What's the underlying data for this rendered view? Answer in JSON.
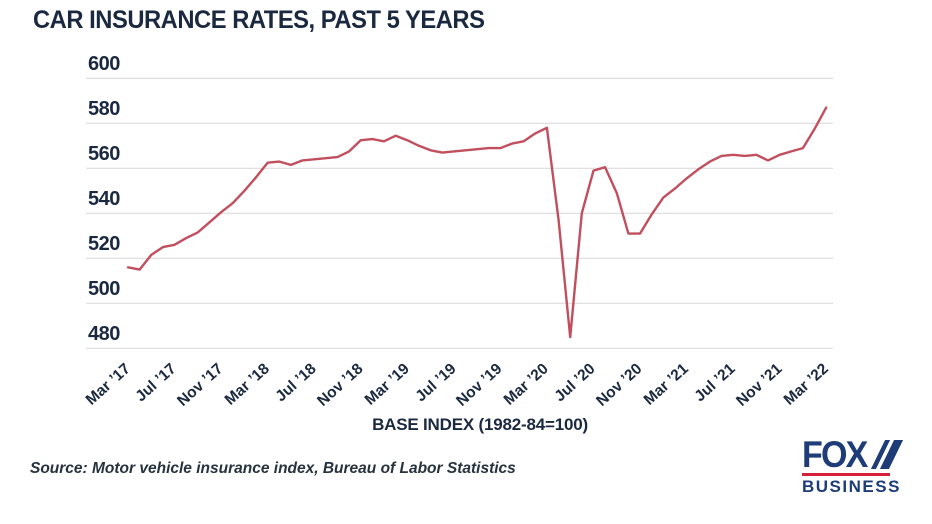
{
  "title": "CAR INSURANCE RATES, PAST 5 YEARS",
  "source": "Source: Motor vehicle insurance index, Bureau of Labor Statistics",
  "logo": {
    "fox": "FOX",
    "business": "BUSINESS"
  },
  "colors": {
    "line": "#c14f5e",
    "grid": "#dcdcdc",
    "text_navy": "#1b2940",
    "logo_navy": "#1d3c78",
    "logo_red": "#d62039"
  },
  "chart_data": {
    "type": "line",
    "title": "CAR INSURANCE RATES, PAST 5 YEARS",
    "xlabel": "BASE INDEX (1982-84=100)",
    "ylabel": "",
    "ylim": [
      480,
      600
    ],
    "yticks": [
      480,
      500,
      520,
      540,
      560,
      580,
      600
    ],
    "xticks": [
      "Mar ’17",
      "Jul ’17",
      "Nov ’17",
      "Mar ’18",
      "Jul ’18",
      "Nov ’18",
      "Mar ’19",
      "Jul ’19",
      "Nov ’19",
      "Mar ’20",
      "Jul ’20",
      "Nov ’20",
      "Mar ’21",
      "Jul ’21",
      "Nov ’21",
      "Mar ’22"
    ],
    "x_range": [
      "Mar ’17",
      "Mar ’22"
    ],
    "frequency": "monthly",
    "grid": "horizontal",
    "legend": "none",
    "series": [
      {
        "name": "Motor vehicle insurance index",
        "values": [
          516,
          515,
          521.5,
          525,
          526,
          529,
          531.5,
          536,
          540.5,
          544.5,
          550,
          556,
          562.5,
          563,
          561.5,
          563.5,
          564,
          564.5,
          565,
          567.5,
          572.5,
          573,
          572,
          574.5,
          572.5,
          570,
          568,
          567,
          567.5,
          568,
          568.5,
          569,
          569,
          571,
          572,
          575.5,
          578,
          537,
          485,
          540,
          559,
          560.5,
          549,
          531,
          531,
          539.5,
          547,
          551,
          555.5,
          559.5,
          563,
          565.5,
          566,
          565.5,
          566,
          563.5,
          566,
          567.5,
          569,
          577.5,
          587
        ]
      }
    ]
  }
}
